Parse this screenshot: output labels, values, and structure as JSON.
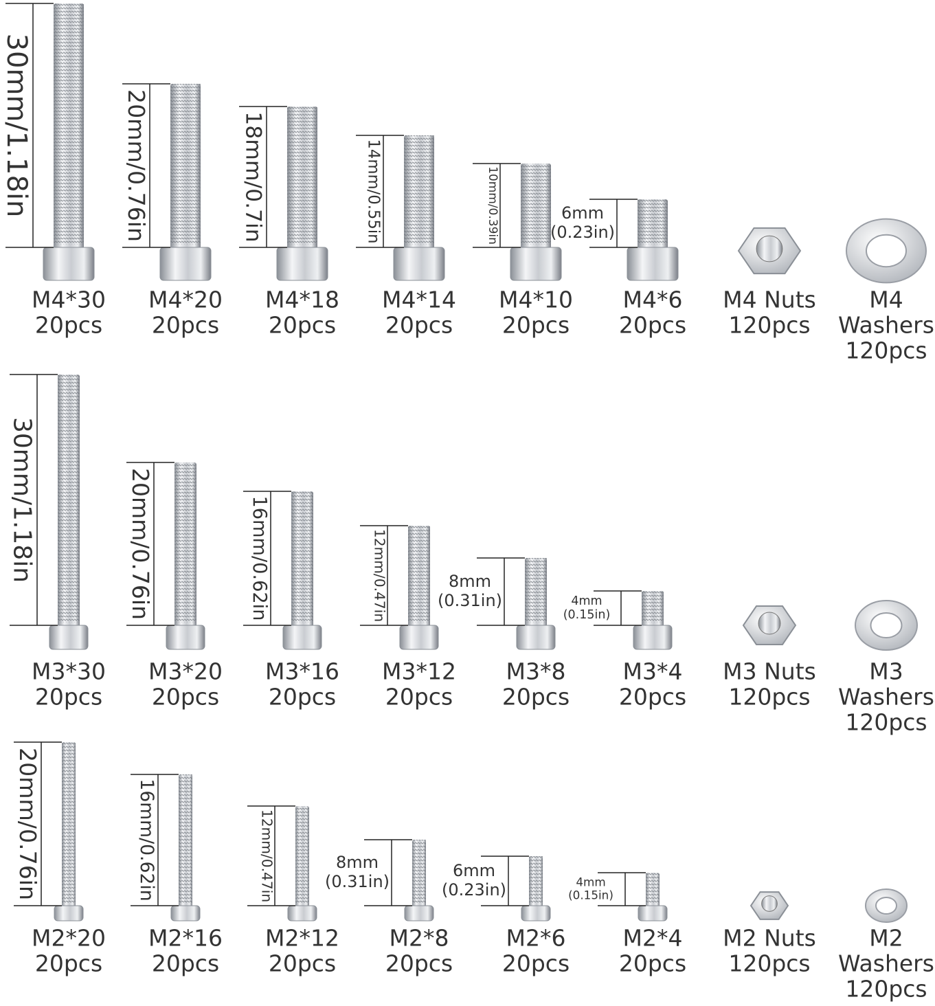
{
  "rows": [
    {
      "items": [
        {
          "lines": [
            "M4*30",
            "20pcs"
          ],
          "dim": "30mm/1.18in"
        },
        {
          "lines": [
            "M4*20",
            "20pcs"
          ],
          "dim": "20mm/0.76in"
        },
        {
          "lines": [
            "M4*18",
            "20pcs"
          ],
          "dim": "18mm/0.7in"
        },
        {
          "lines": [
            "M4*14",
            "20pcs"
          ],
          "dim": "14mm/0.55in"
        },
        {
          "lines": [
            "M4*10",
            "20pcs"
          ],
          "dim": "10mm/0.39in"
        },
        {
          "lines": [
            "M4*6",
            "20pcs"
          ],
          "dim": [
            "6mm",
            "(0.23in)"
          ]
        },
        {
          "lines": [
            "M4 Nuts",
            "120pcs"
          ]
        },
        {
          "lines": [
            "M4",
            "Washers",
            "120pcs"
          ]
        }
      ]
    },
    {
      "items": [
        {
          "lines": [
            "M3*30",
            "20pcs"
          ],
          "dim": "30mm/1.18in"
        },
        {
          "lines": [
            "M3*20",
            "20pcs"
          ],
          "dim": "20mm/0.76in"
        },
        {
          "lines": [
            "M3*16",
            "20pcs"
          ],
          "dim": "16mm/0.62in"
        },
        {
          "lines": [
            "M3*12",
            "20pcs"
          ],
          "dim": "12mm/0.47in"
        },
        {
          "lines": [
            "M3*8",
            "20pcs"
          ],
          "dim": [
            "8mm",
            "(0.31in)"
          ]
        },
        {
          "lines": [
            "M3*4",
            "20pcs"
          ],
          "dim": [
            "4mm",
            "(0.15in)"
          ]
        },
        {
          "lines": [
            "M3 Nuts",
            "120pcs"
          ]
        },
        {
          "lines": [
            "M3",
            "Washers",
            "120pcs"
          ]
        }
      ]
    },
    {
      "items": [
        {
          "lines": [
            "M2*20",
            "20pcs"
          ],
          "dim": "20mm/0.76in"
        },
        {
          "lines": [
            "M2*16",
            "20pcs"
          ],
          "dim": "16mm/0.62in"
        },
        {
          "lines": [
            "M2*12",
            "20pcs"
          ],
          "dim": "12mm/0.47in"
        },
        {
          "lines": [
            "M2*8",
            "20pcs"
          ],
          "dim": [
            "8mm",
            "(0.31in)"
          ]
        },
        {
          "lines": [
            "M2*6",
            "20pcs"
          ],
          "dim": [
            "6mm",
            "(0.23in)"
          ]
        },
        {
          "lines": [
            "M2*4",
            "20pcs"
          ],
          "dim": [
            "4mm",
            "(0.15in)"
          ]
        },
        {
          "lines": [
            "M2 Nuts",
            "120pcs"
          ]
        },
        {
          "lines": [
            "M2",
            "Washers",
            "120pcs"
          ]
        }
      ]
    }
  ]
}
